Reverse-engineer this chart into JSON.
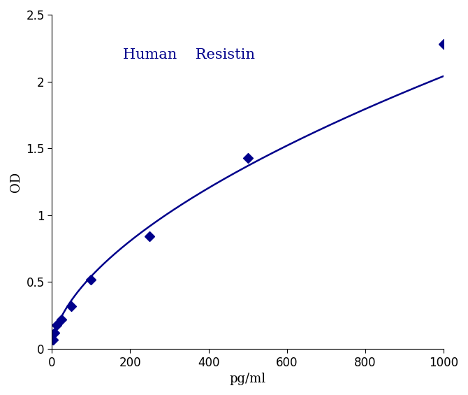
{
  "x_data": [
    3,
    6,
    12,
    25,
    50,
    100,
    250,
    500,
    1000
  ],
  "y_data": [
    0.07,
    0.12,
    0.18,
    0.22,
    0.32,
    0.52,
    0.84,
    1.43,
    2.28
  ],
  "title": "Human    Resistin",
  "xlabel": "pg/ml",
  "ylabel": "OD",
  "xlim": [
    0,
    1000
  ],
  "ylim": [
    0,
    2.5
  ],
  "xticks": [
    0,
    200,
    400,
    600,
    800,
    1000
  ],
  "yticks": [
    0,
    0.5,
    1,
    1.5,
    2,
    2.5
  ],
  "line_color": "#00008B",
  "marker_color": "#00008B",
  "title_color": "#00008B",
  "title_fontsize": 15,
  "axis_label_fontsize": 13,
  "tick_fontsize": 12,
  "marker_size": 7,
  "line_width": 1.8,
  "figure_width": 6.7,
  "figure_height": 5.65,
  "dpi": 100
}
